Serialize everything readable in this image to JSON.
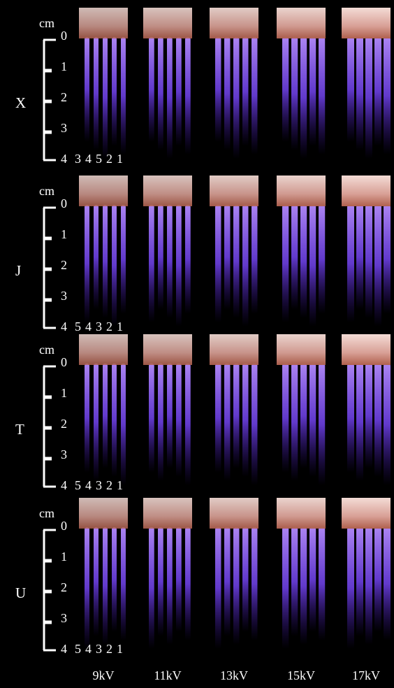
{
  "panels": [
    {
      "label": "X",
      "unit": "cm",
      "scale": [
        0,
        1,
        2,
        3,
        4
      ],
      "order": [
        3,
        4,
        5,
        2,
        1
      ]
    },
    {
      "label": "J",
      "unit": "cm",
      "scale": [
        0,
        1,
        2,
        3,
        4
      ],
      "order": [
        5,
        4,
        3,
        2,
        1
      ]
    },
    {
      "label": "T",
      "unit": "cm",
      "scale": [
        0,
        1,
        2,
        3,
        4
      ],
      "order": [
        5,
        4,
        3,
        2,
        1
      ]
    },
    {
      "label": "U",
      "unit": "cm",
      "scale": [
        0,
        1,
        2,
        3,
        4
      ],
      "order": [
        5,
        4,
        3,
        2,
        1
      ]
    }
  ],
  "columns": [
    "9kV",
    "11kV",
    "13kV",
    "15kV",
    "17kV"
  ]
}
